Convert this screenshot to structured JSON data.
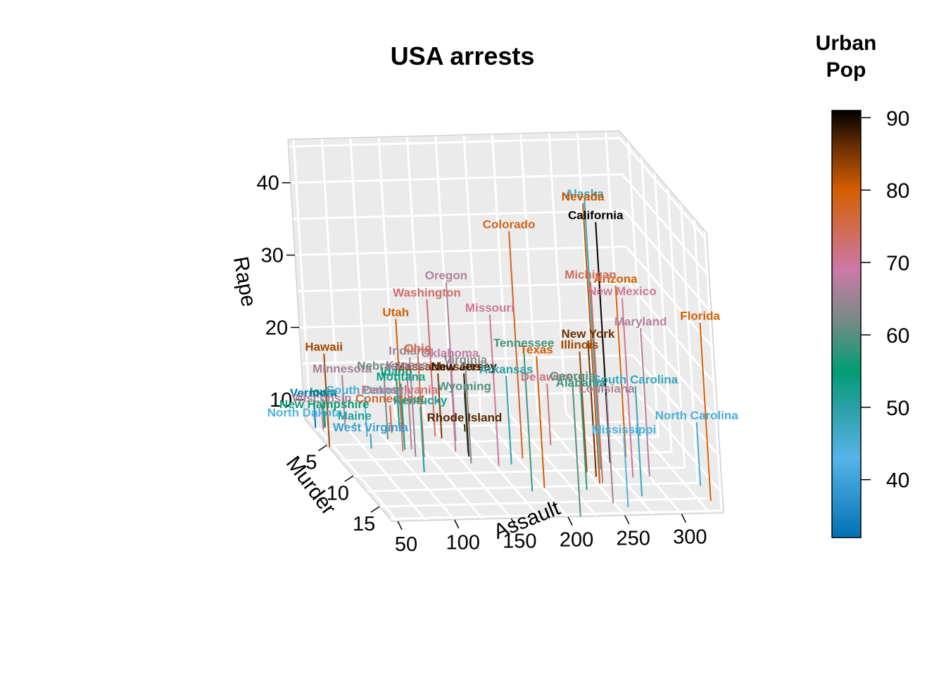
{
  "chart_data": {
    "type": "scatter",
    "subtype": "3d-scatter-with-vertical-lines",
    "title": "USA arrests",
    "xlabel": "Assault",
    "ylabel": "Murder",
    "zlabel": "Rape",
    "x_ticks": [
      "50",
      "100",
      "150",
      "200",
      "250",
      "300"
    ],
    "y_ticks": [
      "5",
      "10",
      "15"
    ],
    "z_ticks": [
      "10",
      "20",
      "30",
      "40"
    ],
    "xlim": [
      45,
      337
    ],
    "ylim": [
      0.8,
      17.4
    ],
    "zlim": [
      7.3,
      46
    ],
    "background": "#EBEBEB",
    "grid": true,
    "legend": {
      "title_line1": "Urban",
      "title_line2": "Pop",
      "position": "right",
      "ticks": [
        "40",
        "50",
        "60",
        "70",
        "80",
        "90"
      ],
      "range": [
        32,
        91
      ],
      "stops": [
        {
          "v": 32,
          "color": "#0072B2"
        },
        {
          "v": 43,
          "color": "#56B4E9"
        },
        {
          "v": 50,
          "color": "#2AA0A6"
        },
        {
          "v": 55,
          "color": "#009E73"
        },
        {
          "v": 62,
          "color": "#778A85"
        },
        {
          "v": 69,
          "color": "#CC79A7"
        },
        {
          "v": 80,
          "color": "#D55E00"
        },
        {
          "v": 86,
          "color": "#6B2F00"
        },
        {
          "v": 91,
          "color": "#000000"
        }
      ]
    },
    "points": [
      {
        "state": "Alabama",
        "assault": 236,
        "murder": 13.2,
        "rape": 21.2,
        "urbanpop": 58
      },
      {
        "state": "Alaska",
        "assault": 263,
        "murder": 10.0,
        "rape": 44.5,
        "urbanpop": 48
      },
      {
        "state": "Arizona",
        "assault": 294,
        "murder": 8.1,
        "rape": 31.0,
        "urbanpop": 80
      },
      {
        "state": "Arkansas",
        "assault": 190,
        "murder": 8.8,
        "rape": 19.5,
        "urbanpop": 50
      },
      {
        "state": "California",
        "assault": 276,
        "murder": 9.0,
        "rape": 40.6,
        "urbanpop": 91
      },
      {
        "state": "Colorado",
        "assault": 204,
        "murder": 7.9,
        "rape": 38.7,
        "urbanpop": 78
      },
      {
        "state": "Connecticut",
        "assault": 110,
        "murder": 3.3,
        "rape": 11.1,
        "urbanpop": 77
      },
      {
        "state": "Delaware",
        "assault": 238,
        "murder": 5.9,
        "rape": 15.8,
        "urbanpop": 72
      },
      {
        "state": "Florida",
        "assault": 335,
        "murder": 15.4,
        "rape": 31.9,
        "urbanpop": 80
      },
      {
        "state": "Georgia",
        "assault": 211,
        "murder": 17.4,
        "rape": 25.8,
        "urbanpop": 60
      },
      {
        "state": "Hawaii",
        "assault": 46,
        "murder": 5.3,
        "rape": 20.2,
        "urbanpop": 83
      },
      {
        "state": "Idaho",
        "assault": 120,
        "murder": 2.6,
        "rape": 14.2,
        "urbanpop": 54
      },
      {
        "state": "Illinois",
        "assault": 249,
        "murder": 10.4,
        "rape": 24.0,
        "urbanpop": 83
      },
      {
        "state": "Indiana",
        "assault": 113,
        "murder": 7.2,
        "rape": 21.0,
        "urbanpop": 65
      },
      {
        "state": "Iowa",
        "assault": 56,
        "murder": 2.2,
        "rape": 11.3,
        "urbanpop": 57
      },
      {
        "state": "Kansas",
        "assault": 115,
        "murder": 6.0,
        "rape": 18.0,
        "urbanpop": 66
      },
      {
        "state": "Kentucky",
        "assault": 109,
        "murder": 9.7,
        "rape": 16.3,
        "urbanpop": 52
      },
      {
        "state": "Louisiana",
        "assault": 249,
        "murder": 15.4,
        "rape": 22.2,
        "urbanpop": 66
      },
      {
        "state": "Maine",
        "assault": 83,
        "murder": 2.1,
        "rape": 7.8,
        "urbanpop": 51
      },
      {
        "state": "Maryland",
        "assault": 300,
        "murder": 11.3,
        "rape": 27.8,
        "urbanpop": 67
      },
      {
        "state": "Massachusetts",
        "assault": 149,
        "murder": 4.4,
        "rape": 16.3,
        "urbanpop": 85
      },
      {
        "state": "Michigan",
        "assault": 255,
        "murder": 12.1,
        "rape": 35.1,
        "urbanpop": 74
      },
      {
        "state": "Minnesota",
        "assault": 72,
        "murder": 2.7,
        "rape": 14.9,
        "urbanpop": 66
      },
      {
        "state": "Mississippi",
        "assault": 259,
        "murder": 16.1,
        "rape": 17.1,
        "urbanpop": 44
      },
      {
        "state": "Missouri",
        "assault": 178,
        "murder": 9.0,
        "rape": 28.2,
        "urbanpop": 70
      },
      {
        "state": "Montana",
        "assault": 109,
        "murder": 6.0,
        "rape": 16.4,
        "urbanpop": 53
      },
      {
        "state": "Nebraska",
        "assault": 102,
        "murder": 4.3,
        "rape": 16.5,
        "urbanpop": 62
      },
      {
        "state": "Nevada",
        "assault": 252,
        "murder": 12.2,
        "rape": 46.0,
        "urbanpop": 81
      },
      {
        "state": "New Hampshire",
        "assault": 57,
        "murder": 2.1,
        "rape": 9.5,
        "urbanpop": 56
      },
      {
        "state": "New Jersey",
        "assault": 159,
        "murder": 7.4,
        "rape": 18.8,
        "urbanpop": 89
      },
      {
        "state": "New Mexico",
        "assault": 285,
        "murder": 11.4,
        "rape": 32.1,
        "urbanpop": 70
      },
      {
        "state": "New York",
        "assault": 254,
        "murder": 11.1,
        "rape": 26.1,
        "urbanpop": 86
      },
      {
        "state": "North Carolina",
        "assault": 337,
        "murder": 13.0,
        "rape": 16.1,
        "urbanpop": 45
      },
      {
        "state": "North Dakota",
        "assault": 45,
        "murder": 0.8,
        "rape": 7.3,
        "urbanpop": 44
      },
      {
        "state": "Ohio",
        "assault": 120,
        "murder": 7.3,
        "rape": 21.4,
        "urbanpop": 75
      },
      {
        "state": "Oklahoma",
        "assault": 151,
        "murder": 6.6,
        "rape": 20.0,
        "urbanpop": 68
      },
      {
        "state": "Oregon",
        "assault": 159,
        "murder": 4.9,
        "rape": 29.3,
        "urbanpop": 67
      },
      {
        "state": "Pennsylvania",
        "assault": 106,
        "murder": 6.3,
        "rape": 14.9,
        "urbanpop": 72
      },
      {
        "state": "Rhode Island",
        "assault": 174,
        "murder": 3.4,
        "rape": 8.3,
        "urbanpop": 87
      },
      {
        "state": "South Carolina",
        "assault": 279,
        "murder": 14.4,
        "rape": 22.5,
        "urbanpop": 48
      },
      {
        "state": "South Dakota",
        "assault": 86,
        "murder": 3.8,
        "rape": 12.8,
        "urbanpop": 45
      },
      {
        "state": "Tennessee",
        "assault": 188,
        "murder": 13.2,
        "rape": 26.9,
        "urbanpop": 59
      },
      {
        "state": "Texas",
        "assault": 201,
        "murder": 12.7,
        "rape": 25.5,
        "urbanpop": 80
      },
      {
        "state": "Utah",
        "assault": 120,
        "murder": 3.2,
        "rape": 22.9,
        "urbanpop": 80
      },
      {
        "state": "Vermont",
        "assault": 48,
        "murder": 2.2,
        "rape": 11.2,
        "urbanpop": 32
      },
      {
        "state": "Virginia",
        "assault": 156,
        "murder": 8.5,
        "rape": 20.7,
        "urbanpop": 63
      },
      {
        "state": "Washington",
        "assault": 145,
        "murder": 4.0,
        "rape": 26.2,
        "urbanpop": 73
      },
      {
        "state": "West Virginia",
        "assault": 81,
        "murder": 5.7,
        "rape": 9.3,
        "urbanpop": 39
      },
      {
        "state": "Wisconsin",
        "assault": 53,
        "murder": 2.6,
        "rape": 10.8,
        "urbanpop": 66
      },
      {
        "state": "Wyoming",
        "assault": 161,
        "murder": 6.8,
        "rape": 15.6,
        "urbanpop": 60
      }
    ]
  }
}
